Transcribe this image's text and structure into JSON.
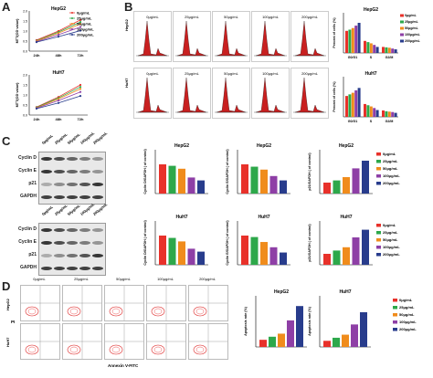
{
  "panels": {
    "a": "A",
    "b": "B",
    "c": "C",
    "d": "D"
  },
  "colors": {
    "c0": "#e8312a",
    "c1": "#2da84a",
    "c2": "#f08c1c",
    "c3": "#8e3fa6",
    "c4": "#283c8c"
  },
  "legend": [
    "0μg/mL",
    "25μg/mL",
    "50μg/mL",
    "100μg/mL",
    "200μg/mL"
  ],
  "panelA": {
    "charts": [
      {
        "title": "HepG2",
        "ylabel": "MTT(OD value)",
        "x": [
          "24h",
          "48h",
          "72h"
        ],
        "yticks": [
          "0.0",
          "0.5",
          "1.0",
          "1.5",
          "2.0"
        ],
        "series": [
          [
            0.55,
            1.0,
            1.55
          ],
          [
            0.52,
            0.95,
            1.45
          ],
          [
            0.5,
            0.9,
            1.35
          ],
          [
            0.47,
            0.82,
            1.2
          ],
          [
            0.45,
            0.72,
            1.02
          ]
        ]
      },
      {
        "title": "HuH7",
        "ylabel": "MTT(OD value)",
        "x": [
          "24h",
          "48h",
          "72h"
        ],
        "yticks": [
          "0.0",
          "0.5",
          "1.0",
          "1.5",
          "2.0"
        ],
        "series": [
          [
            0.4,
            0.9,
            1.5
          ],
          [
            0.38,
            0.85,
            1.4
          ],
          [
            0.36,
            0.8,
            1.3
          ],
          [
            0.34,
            0.72,
            1.15
          ],
          [
            0.32,
            0.6,
            0.95
          ]
        ]
      }
    ]
  },
  "panelB": {
    "row_labels": [
      "HepG2",
      "HuH7"
    ],
    "col_labels": [
      "0μg/mL",
      "25μg/mL",
      "50μg/mL",
      "100μg/mL",
      "200μg/mL"
    ],
    "bars": [
      {
        "title": "HepG2",
        "ylabel": "Percent of cells (%)",
        "groups": [
          "G0/G1",
          "S",
          "G2/M"
        ],
        "values": [
          [
            55,
            58,
            62,
            68,
            75
          ],
          [
            30,
            27,
            24,
            20,
            15
          ],
          [
            15,
            14,
            13,
            11,
            9
          ]
        ]
      },
      {
        "title": "HuH7",
        "ylabel": "Percent of cells (%)",
        "groups": [
          "G0/G1",
          "S",
          "G2/M"
        ],
        "values": [
          [
            52,
            56,
            60,
            66,
            72
          ],
          [
            32,
            29,
            26,
            22,
            17
          ],
          [
            16,
            14,
            13,
            12,
            10
          ]
        ]
      }
    ]
  },
  "panelC": {
    "blot_cols": [
      "0μg/mL",
      "25μg/mL",
      "50μg/mL",
      "100μg/mL",
      "200μg/mL"
    ],
    "blot_rows": [
      "Cyclin D",
      "Cyclin E",
      "p21",
      "GAPDH"
    ],
    "charts": [
      {
        "title": "HepG2",
        "ylabel": "Cyclin D/GAPDH ( of control)",
        "values": [
          1.0,
          0.95,
          0.85,
          0.55,
          0.45
        ]
      },
      {
        "title": "HepG2",
        "ylabel": "Cyclin E/GAPDH ( of control)",
        "values": [
          1.0,
          0.92,
          0.82,
          0.6,
          0.45
        ]
      },
      {
        "title": "HepG2",
        "ylabel": "p21/GAPDH ( of control)",
        "values": [
          1.0,
          1.2,
          1.5,
          2.3,
          3.0
        ]
      },
      {
        "title": "HuH7",
        "ylabel": "Cyclin D/GAPDH ( of control)",
        "values": [
          1.0,
          0.92,
          0.8,
          0.55,
          0.45
        ]
      },
      {
        "title": "HuH7",
        "ylabel": "Cyclin E/GAPDH ( of control)",
        "values": [
          1.0,
          0.95,
          0.78,
          0.6,
          0.42
        ]
      },
      {
        "title": "HuH7",
        "ylabel": "p21/GAPDH ( of control)",
        "values": [
          1.0,
          1.3,
          1.6,
          2.5,
          3.2
        ]
      }
    ]
  },
  "panelD": {
    "col_labels": [
      "0μg/mL",
      "25μg/mL",
      "50μg/mL",
      "100μg/mL",
      "200μg/mL"
    ],
    "row_labels": [
      "HepG2",
      "HuH7"
    ],
    "y_axis_label": "PI",
    "x_axis_label": "Annexin V-FITC",
    "charts": [
      {
        "title": "HepG2",
        "ylabel": "Apoptosis rate (%)",
        "values": [
          3.5,
          5.0,
          6.5,
          13.0,
          20.0
        ]
      },
      {
        "title": "HuH7",
        "ylabel": "Apoptosis rate (%)",
        "values": [
          3.0,
          4.5,
          6.0,
          11.0,
          17.0
        ]
      }
    ]
  }
}
